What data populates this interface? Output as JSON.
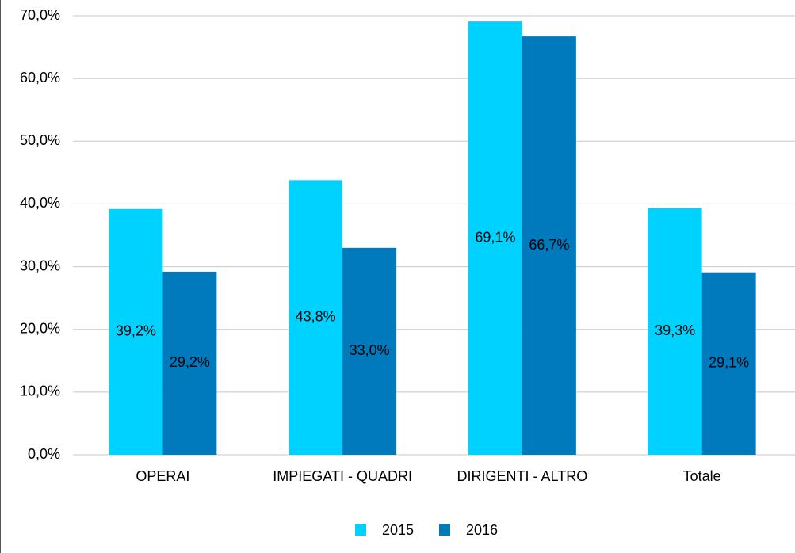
{
  "chart_data": {
    "type": "bar",
    "categories": [
      "OPERAI",
      "IMPIEGATI - QUADRI",
      "DIRIGENTI - ALTRO",
      "Totale"
    ],
    "series": [
      {
        "name": "2015",
        "color": "#00d2ff",
        "values": [
          39.2,
          43.8,
          69.1,
          39.3
        ],
        "value_labels": [
          "39,2%",
          "43,8%",
          "69,1%",
          "39,3%"
        ]
      },
      {
        "name": "2016",
        "color": "#0079bd",
        "values": [
          29.2,
          33.0,
          66.7,
          29.1
        ],
        "value_labels": [
          "29,2%",
          "33,0%",
          "66,7%",
          "29,1%"
        ]
      }
    ],
    "ylim": [
      0,
      70
    ],
    "yticks": [
      {
        "value": 0,
        "label": "0,0%"
      },
      {
        "value": 10,
        "label": "10,0%"
      },
      {
        "value": 20,
        "label": "20,0%"
      },
      {
        "value": 30,
        "label": "30,0%"
      },
      {
        "value": 40,
        "label": "40,0%"
      },
      {
        "value": 50,
        "label": "50,0%"
      },
      {
        "value": 60,
        "label": "60,0%"
      },
      {
        "value": 70,
        "label": "70,0%"
      }
    ],
    "grid": true,
    "legend": "bottom"
  }
}
